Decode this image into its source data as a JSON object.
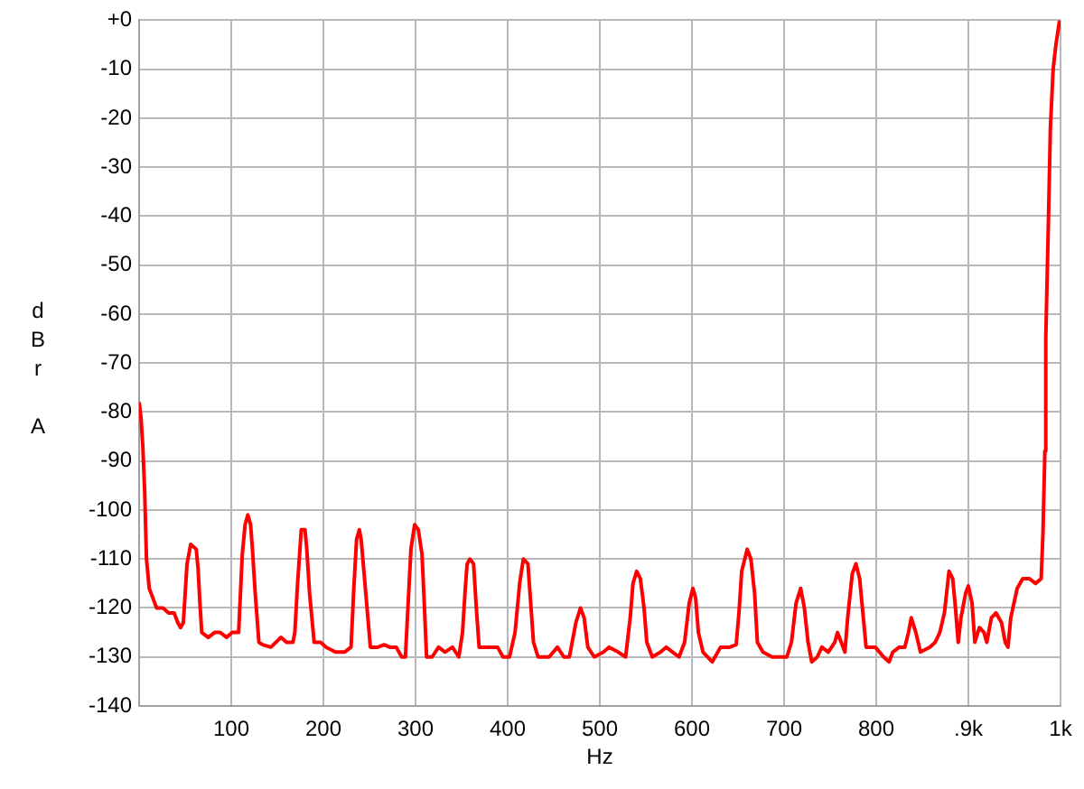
{
  "chart_data": {
    "type": "line",
    "xlabel": "Hz",
    "ylabel": "dBr A",
    "color": "#ff0000",
    "grid": true,
    "xlim": [
      0,
      1000
    ],
    "ylim": [
      -140,
      0
    ],
    "xticks": [
      100,
      200,
      300,
      400,
      500,
      600,
      700,
      800,
      {
        "value": 900,
        "label": ".9k"
      },
      {
        "value": 1000,
        "label": "1k"
      }
    ],
    "yticks": [
      {
        "value": 0,
        "label": "+0"
      },
      -10,
      -20,
      -30,
      -40,
      -50,
      -60,
      -70,
      -80,
      -90,
      -100,
      -110,
      -120,
      -130,
      -140
    ],
    "x": [
      0,
      2,
      4,
      6,
      8,
      11,
      15,
      19,
      26,
      32,
      38,
      42,
      45,
      48,
      50,
      52,
      56,
      62,
      64,
      66,
      68,
      75,
      82,
      88,
      95,
      101,
      108,
      110,
      112,
      115,
      118,
      121,
      123,
      126,
      130,
      134,
      143,
      154,
      160,
      167,
      169,
      172,
      176,
      180,
      182,
      185,
      190,
      197,
      203,
      213,
      223,
      230,
      233,
      236,
      239,
      241,
      246,
      251,
      259,
      266,
      272,
      279,
      285,
      289,
      292,
      295,
      299,
      303,
      307,
      309,
      312,
      318,
      325,
      332,
      340,
      347,
      351,
      354,
      356,
      359,
      363,
      366,
      369,
      379,
      389,
      395,
      402,
      408,
      413,
      417,
      422,
      425,
      428,
      433,
      445,
      454,
      461,
      467,
      474,
      479,
      483,
      487,
      494,
      504,
      510,
      520,
      528,
      533,
      536,
      540,
      544,
      548,
      551,
      557,
      566,
      572,
      579,
      586,
      592,
      597,
      601,
      604,
      607,
      612,
      622,
      631,
      641,
      648,
      651,
      654,
      660,
      664,
      668,
      671,
      677,
      687,
      697,
      703,
      708,
      713,
      718,
      722,
      726,
      730,
      736,
      741,
      748,
      755,
      758,
      762,
      766,
      769,
      774,
      778,
      782,
      785,
      789,
      799,
      808,
      814,
      818,
      825,
      831,
      835,
      838,
      843,
      848,
      858,
      864,
      869,
      874,
      879,
      883,
      886,
      889,
      892,
      897,
      900,
      904,
      907,
      912,
      917,
      920,
      925,
      930,
      936,
      940,
      943,
      946,
      953,
      959,
      966,
      973,
      979,
      981,
      983,
      984,
      987,
      989,
      992,
      995,
      999
    ],
    "values": [
      -78,
      -81,
      -87,
      -96,
      -110,
      -116,
      -118,
      -120,
      -120,
      -121,
      -121,
      -123,
      -124,
      -123,
      -117,
      -111,
      -107,
      -108,
      -112,
      -119,
      -125,
      -126,
      -125,
      -125,
      -126,
      -125,
      -125,
      -117,
      -109,
      -103,
      -101,
      -103,
      -108,
      -117,
      -127,
      -127.5,
      -128,
      -126,
      -127,
      -127,
      -125,
      -115,
      -104,
      -104,
      -108,
      -117,
      -127,
      -127,
      -128,
      -129,
      -129,
      -128,
      -116,
      -106,
      -104,
      -106,
      -117,
      -128,
      -128,
      -127.5,
      -128,
      -128,
      -130,
      -130,
      -119,
      -108,
      -103,
      -104,
      -109,
      -117,
      -130,
      -130,
      -128,
      -129,
      -128,
      -130,
      -125,
      -116,
      -111,
      -110,
      -111,
      -120,
      -128,
      -128,
      -128,
      -130,
      -130,
      -125,
      -115,
      -110,
      -111,
      -119,
      -127,
      -130,
      -130,
      -128,
      -130,
      -130,
      -123,
      -120,
      -122,
      -128,
      -130,
      -129,
      -128,
      -129,
      -130,
      -122,
      -115,
      -112.5,
      -114,
      -120,
      -127,
      -130,
      -129,
      -128,
      -129,
      -130,
      -127,
      -119,
      -116,
      -118,
      -125,
      -129,
      -131,
      -128,
      -128,
      -127.5,
      -121,
      -112.5,
      -108,
      -110,
      -117,
      -127,
      -129,
      -130,
      -130,
      -130,
      -127,
      -119,
      -116,
      -120,
      -127,
      -131,
      -130,
      -128,
      -129,
      -127,
      -125,
      -127,
      -129,
      -122,
      -113,
      -111,
      -114,
      -120,
      -128,
      -128,
      -130,
      -131,
      -129,
      -128,
      -128,
      -125,
      -122,
      -125,
      -129,
      -128,
      -127,
      -125,
      -121,
      -112.5,
      -114,
      -120,
      -127,
      -122,
      -117,
      -115.5,
      -119,
      -127,
      -124,
      -125,
      -127,
      -122,
      -121,
      -123,
      -127,
      -128,
      -122,
      -116,
      -114,
      -114,
      -115,
      -114,
      -104.5,
      -88,
      -65,
      -40,
      -22,
      -10,
      -5,
      0
    ]
  }
}
